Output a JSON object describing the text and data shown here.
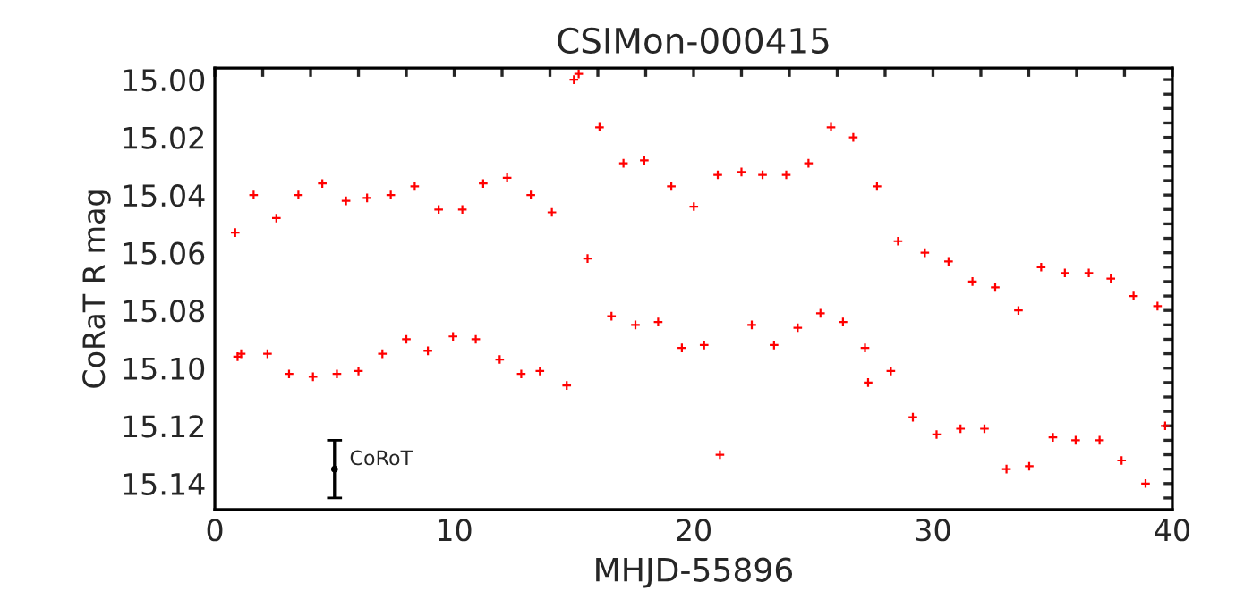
{
  "chart_data": {
    "type": "scatter",
    "title": "CSIMon-000415",
    "xlabel": "MHJD-55896",
    "ylabel": "CoRaT R mag",
    "xlim": [
      0,
      40
    ],
    "ylim": [
      15.149,
      14.996
    ],
    "xticks": [
      0,
      {
        "value": 2,
        "label": null
      },
      {
        "value": 4,
        "label": null
      },
      {
        "value": 6,
        "label": null
      },
      {
        "value": 8,
        "label": null
      },
      10,
      {
        "value": 12,
        "label": null
      },
      {
        "value": 14,
        "label": null
      },
      {
        "value": 16,
        "label": null
      },
      {
        "value": 18,
        "label": null
      },
      20,
      {
        "value": 22,
        "label": null
      },
      {
        "value": 24,
        "label": null
      },
      {
        "value": 26,
        "label": null
      },
      {
        "value": 28,
        "label": null
      },
      30,
      {
        "value": 32,
        "label": null
      },
      {
        "value": 34,
        "label": null
      },
      {
        "value": 36,
        "label": null
      },
      {
        "value": 38,
        "label": null
      },
      40
    ],
    "yticks": [
      {
        "value": 15.0,
        "label": "15.00"
      },
      {
        "value": 15.005,
        "label": null
      },
      {
        "value": 15.01,
        "label": null
      },
      {
        "value": 15.015,
        "label": null
      },
      {
        "value": 15.02,
        "label": "15.02"
      },
      {
        "value": 15.025,
        "label": null
      },
      {
        "value": 15.03,
        "label": null
      },
      {
        "value": 15.035,
        "label": null
      },
      {
        "value": 15.04,
        "label": "15.04"
      },
      {
        "value": 15.045,
        "label": null
      },
      {
        "value": 15.05,
        "label": null
      },
      {
        "value": 15.055,
        "label": null
      },
      {
        "value": 15.06,
        "label": "15.06"
      },
      {
        "value": 15.065,
        "label": null
      },
      {
        "value": 15.07,
        "label": null
      },
      {
        "value": 15.075,
        "label": null
      },
      {
        "value": 15.08,
        "label": "15.08"
      },
      {
        "value": 15.085,
        "label": null
      },
      {
        "value": 15.09,
        "label": null
      },
      {
        "value": 15.095,
        "label": null
      },
      {
        "value": 15.1,
        "label": "15.10"
      },
      {
        "value": 15.105,
        "label": null
      },
      {
        "value": 15.11,
        "label": null
      },
      {
        "value": 15.115,
        "label": null
      },
      {
        "value": 15.12,
        "label": "15.12"
      },
      {
        "value": 15.125,
        "label": null
      },
      {
        "value": 15.13,
        "label": null
      },
      {
        "value": 15.135,
        "label": null
      },
      {
        "value": 15.14,
        "label": "15.14"
      },
      {
        "value": 15.145,
        "label": null
      }
    ],
    "grid": false,
    "legend": false,
    "series": [
      {
        "color": "#ff0000",
        "marker": "cross",
        "x": [
          0.85,
          0.95,
          1.1,
          1.62,
          2.2,
          2.57,
          3.1,
          3.49,
          4.1,
          4.49,
          5.1,
          5.48,
          6.0,
          6.36,
          7.0,
          7.35,
          8.0,
          8.35,
          8.9,
          9.35,
          9.95,
          10.34,
          10.9,
          11.21,
          11.9,
          12.21,
          12.8,
          13.2,
          13.58,
          14.08,
          14.7,
          15.0,
          15.2,
          15.57,
          16.07,
          16.57,
          17.07,
          17.57,
          17.94,
          18.52,
          19.07,
          19.51,
          20.01,
          20.44,
          21.01,
          21.1,
          22.0,
          22.43,
          22.88,
          23.36,
          23.87,
          24.35,
          24.8,
          25.3,
          25.74,
          26.24,
          26.67,
          27.16,
          27.29,
          27.66,
          28.24,
          28.54,
          29.16,
          29.66,
          30.15,
          30.65,
          31.15,
          31.65,
          32.15,
          32.6,
          33.07,
          33.57,
          34.02,
          34.52,
          35.01,
          35.51,
          35.96,
          36.51,
          36.96,
          37.43,
          37.88,
          38.38,
          38.88,
          39.38,
          39.7
        ],
        "values": [
          15.053,
          15.096,
          15.095,
          15.04,
          15.095,
          15.048,
          15.102,
          15.04,
          15.103,
          15.036,
          15.102,
          15.042,
          15.101,
          15.041,
          15.095,
          15.04,
          15.09,
          15.037,
          15.094,
          15.045,
          15.089,
          15.045,
          15.09,
          15.036,
          15.097,
          15.034,
          15.102,
          15.04,
          15.101,
          15.046,
          15.106,
          15.0,
          14.998,
          15.062,
          15.0165,
          15.082,
          15.029,
          15.085,
          15.028,
          15.084,
          15.037,
          15.093,
          15.044,
          15.092,
          15.033,
          15.13,
          15.032,
          15.085,
          15.033,
          15.092,
          15.033,
          15.086,
          15.029,
          15.081,
          15.0165,
          15.084,
          15.02,
          15.093,
          15.105,
          15.037,
          15.101,
          15.056,
          15.117,
          15.06,
          15.123,
          15.063,
          15.121,
          15.07,
          15.121,
          15.072,
          15.135,
          15.08,
          15.134,
          15.065,
          15.124,
          15.067,
          15.125,
          15.067,
          15.125,
          15.069,
          15.132,
          15.075,
          15.14,
          15.0785,
          15.12
        ]
      },
      {
        "color": "#000000",
        "marker": "circle",
        "x": [
          5
        ],
        "values": [
          15.135
        ],
        "errors": [
          0.01
        ]
      }
    ],
    "annotations": [
      {
        "text": "CoRoT",
        "x": 5,
        "y": 15.135
      }
    ]
  }
}
